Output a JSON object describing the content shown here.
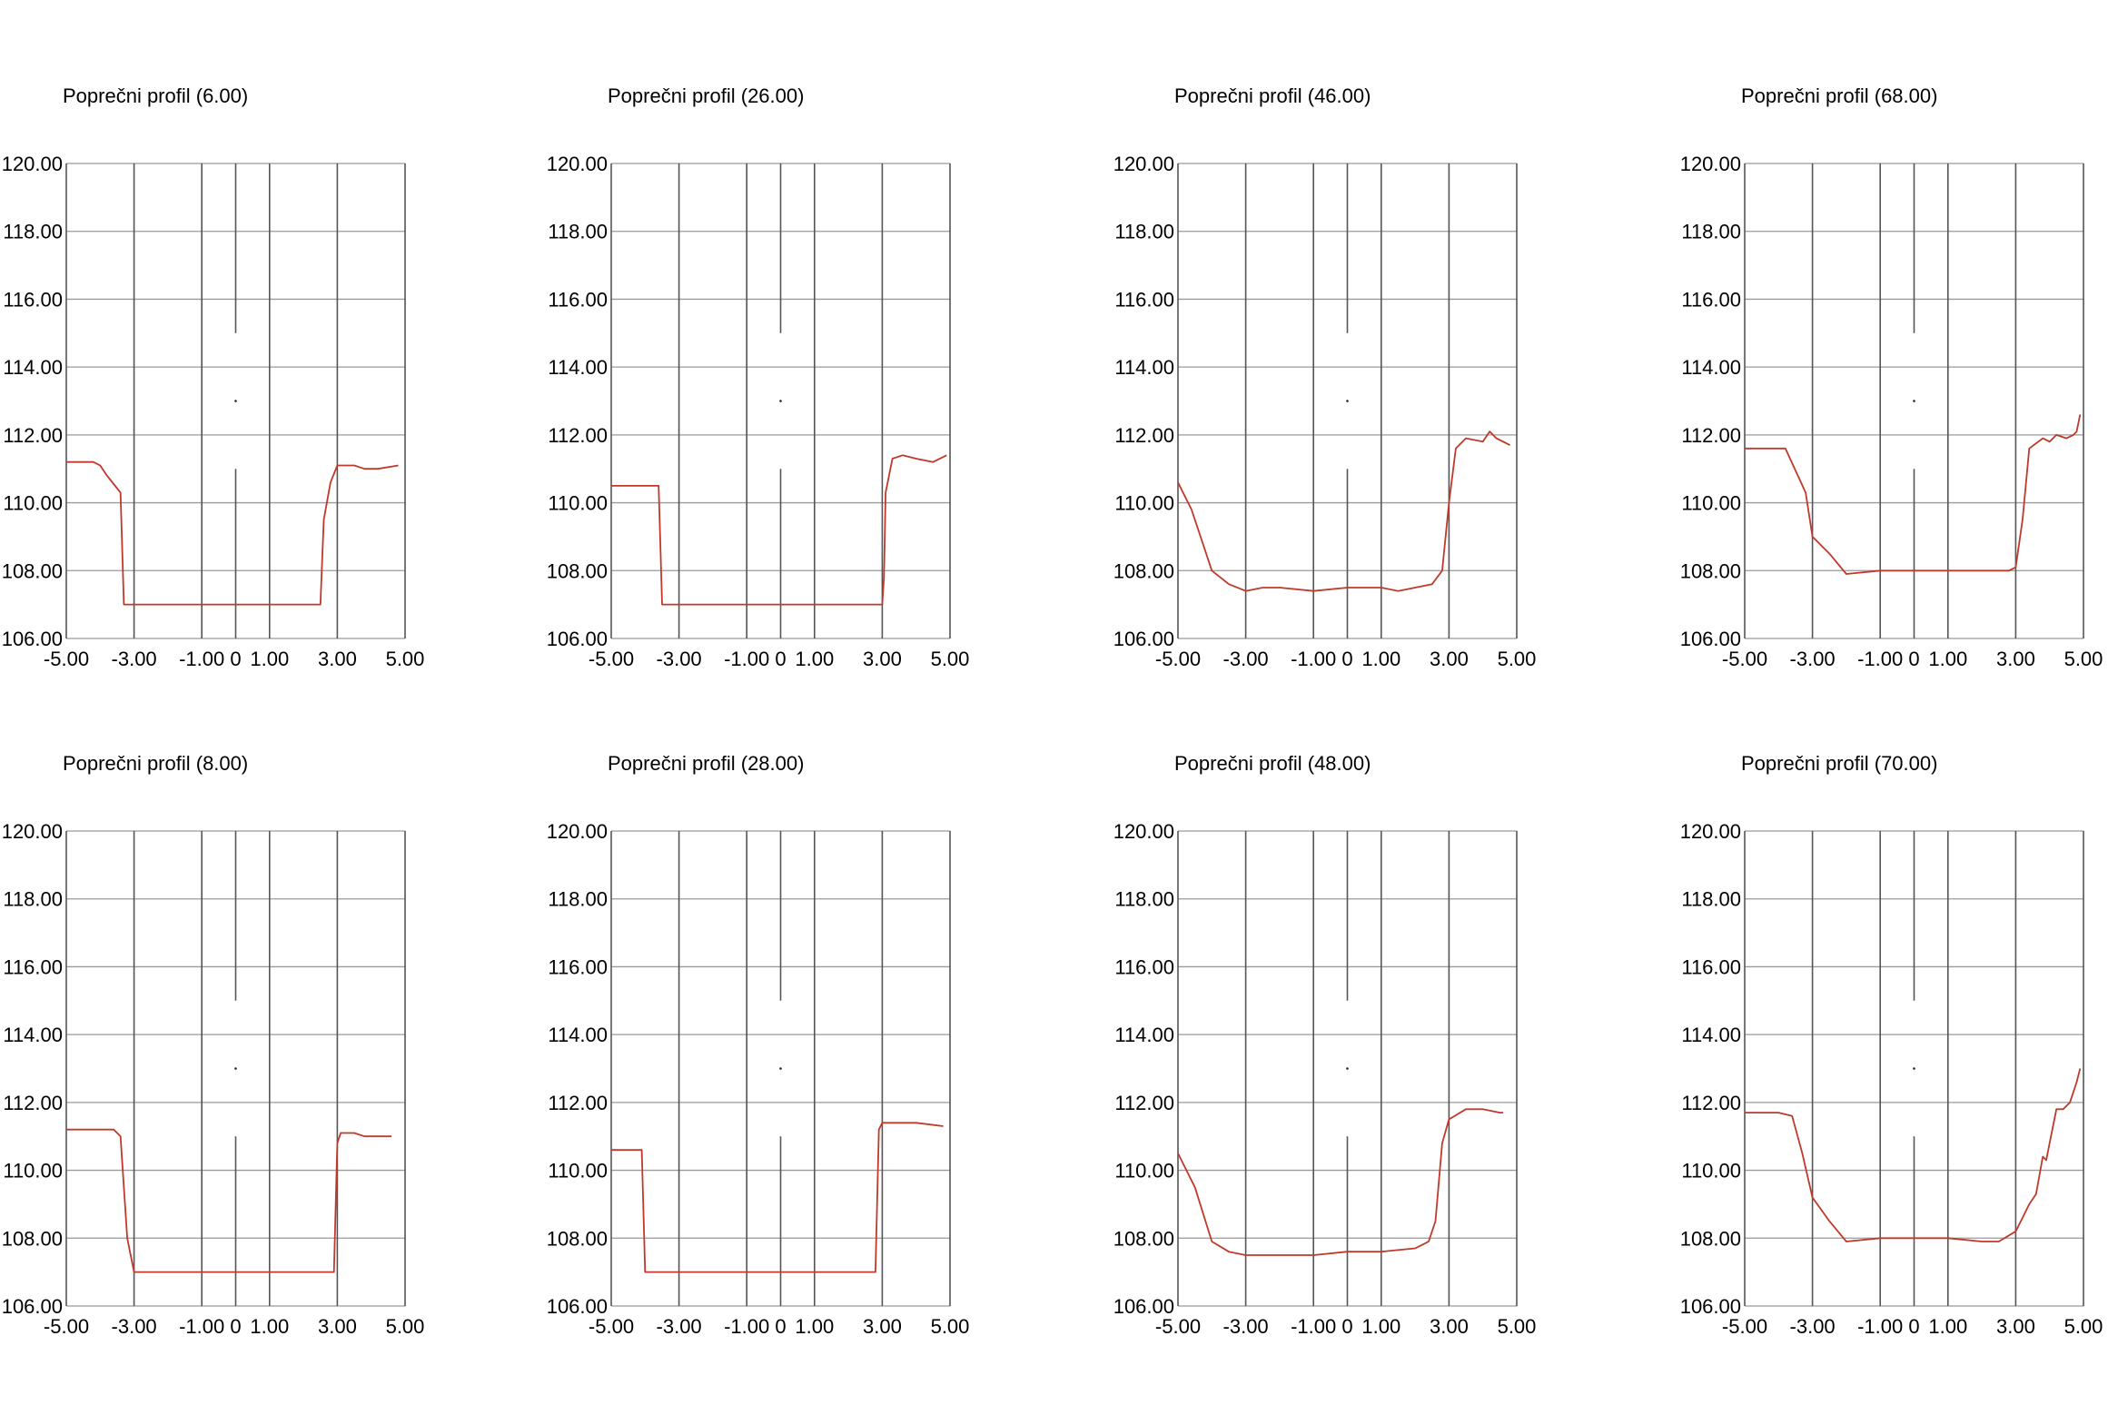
{
  "colors": {
    "profile_line": "#c0392b",
    "grid": "#9a9a9a",
    "axis_lines": "#555555"
  },
  "chart_data": [
    {
      "type": "line",
      "title": "Poprečni profil (6.00)",
      "ylim": [
        106,
        120
      ],
      "xlim": [
        -5,
        5
      ],
      "y_ticks": [
        "106.00",
        "108.00",
        "110.00",
        "112.00",
        "114.00",
        "116.00",
        "118.00",
        "120.00"
      ],
      "x_ticks": [
        {
          "value": -5,
          "label": "-5.00"
        },
        {
          "value": -3,
          "label": "-3.00"
        },
        {
          "value": -1,
          "label": "-1.00"
        },
        {
          "value": 0,
          "label": "0"
        },
        {
          "value": 1,
          "label": "1.00"
        },
        {
          "value": 3,
          "label": "3.00"
        },
        {
          "value": 5,
          "label": "5.00"
        }
      ],
      "series": [
        {
          "x": [
            -5,
            -4.2,
            -4,
            -3.8,
            -3.4,
            -3.3,
            -2.5,
            0,
            2,
            2.5,
            2.6,
            2.8,
            3.0,
            3.5,
            3.8,
            4.2,
            4.8
          ],
          "y": [
            111.2,
            111.2,
            111.1,
            110.8,
            110.3,
            107.0,
            107.0,
            107.0,
            107.0,
            107.0,
            109.5,
            110.6,
            111.1,
            111.1,
            111.0,
            111.0,
            111.1
          ]
        }
      ]
    },
    {
      "type": "line",
      "title": "Poprečni profil (26.00)",
      "ylim": [
        106,
        120
      ],
      "xlim": [
        -5,
        5
      ],
      "y_ticks": [
        "106.00",
        "108.00",
        "110.00",
        "112.00",
        "114.00",
        "116.00",
        "118.00",
        "120.00"
      ],
      "x_ticks": [
        {
          "value": -5,
          "label": "-5.00"
        },
        {
          "value": -3,
          "label": "-3.00"
        },
        {
          "value": -1,
          "label": "-1.00"
        },
        {
          "value": 0,
          "label": "0"
        },
        {
          "value": 1,
          "label": "1.00"
        },
        {
          "value": 3,
          "label": "3.00"
        },
        {
          "value": 5,
          "label": "5.00"
        }
      ],
      "series": [
        {
          "x": [
            -5,
            -3.9,
            -3.6,
            -3.5,
            0,
            2,
            3.0,
            3.05,
            3.1,
            3.3,
            3.6,
            4.0,
            4.5,
            4.9
          ],
          "y": [
            110.5,
            110.5,
            110.5,
            107.0,
            107.0,
            107.0,
            107.0,
            107.8,
            110.3,
            111.3,
            111.4,
            111.3,
            111.2,
            111.4
          ]
        }
      ]
    },
    {
      "type": "line",
      "title": "Poprečni profil (46.00)",
      "ylim": [
        106,
        120
      ],
      "xlim": [
        -5,
        5
      ],
      "y_ticks": [
        "106.00",
        "108.00",
        "110.00",
        "112.00",
        "114.00",
        "116.00",
        "118.00",
        "120.00"
      ],
      "x_ticks": [
        {
          "value": -5,
          "label": "-5.00"
        },
        {
          "value": -3,
          "label": "-3.00"
        },
        {
          "value": -1,
          "label": "-1.00"
        },
        {
          "value": 0,
          "label": "0"
        },
        {
          "value": 1,
          "label": "1.00"
        },
        {
          "value": 3,
          "label": "3.00"
        },
        {
          "value": 5,
          "label": "5.00"
        }
      ],
      "series": [
        {
          "x": [
            -5,
            -4.6,
            -4,
            -3.5,
            -3,
            -2.5,
            -2,
            -1,
            0,
            1,
            1.5,
            2,
            2.5,
            2.8,
            3.0,
            3.2,
            3.5,
            4.0,
            4.2,
            4.4,
            4.8
          ],
          "y": [
            110.6,
            109.8,
            108.0,
            107.6,
            107.4,
            107.5,
            107.5,
            107.4,
            107.5,
            107.5,
            107.4,
            107.5,
            107.6,
            108.0,
            110.0,
            111.6,
            111.9,
            111.8,
            112.1,
            111.9,
            111.7
          ]
        }
      ]
    },
    {
      "type": "line",
      "title": "Poprečni profil (68.00)",
      "ylim": [
        106,
        120
      ],
      "xlim": [
        -5,
        5
      ],
      "y_ticks": [
        "106.00",
        "108.00",
        "110.00",
        "112.00",
        "114.00",
        "116.00",
        "118.00",
        "120.00"
      ],
      "x_ticks": [
        {
          "value": -5,
          "label": "-5.00"
        },
        {
          "value": -3,
          "label": "-3.00"
        },
        {
          "value": -1,
          "label": "-1.00"
        },
        {
          "value": 0,
          "label": "0"
        },
        {
          "value": 1,
          "label": "1.00"
        },
        {
          "value": 3,
          "label": "3.00"
        },
        {
          "value": 5,
          "label": "5.00"
        }
      ],
      "series": [
        {
          "x": [
            -5,
            -4,
            -3.8,
            -3.2,
            -3,
            -2.5,
            -2,
            -1,
            0,
            1,
            2,
            2.8,
            3.0,
            3.2,
            3.4,
            3.8,
            4.0,
            4.2,
            4.5,
            4.7,
            4.8,
            4.9
          ],
          "y": [
            111.6,
            111.6,
            111.6,
            110.3,
            109.0,
            108.5,
            107.9,
            108.0,
            108.0,
            108.0,
            108.0,
            108.0,
            108.1,
            109.5,
            111.6,
            111.9,
            111.8,
            112.0,
            111.9,
            112.0,
            112.1,
            112.6
          ]
        }
      ]
    },
    {
      "type": "line",
      "title": "Poprečni profil (8.00)",
      "ylim": [
        106,
        120
      ],
      "xlim": [
        -5,
        5
      ],
      "y_ticks": [
        "106.00",
        "108.00",
        "110.00",
        "112.00",
        "114.00",
        "116.00",
        "118.00",
        "120.00"
      ],
      "x_ticks": [
        {
          "value": -5,
          "label": "-5.00"
        },
        {
          "value": -3,
          "label": "-3.00"
        },
        {
          "value": -1,
          "label": "-1.00"
        },
        {
          "value": 0,
          "label": "0"
        },
        {
          "value": 1,
          "label": "1.00"
        },
        {
          "value": 3,
          "label": "3.00"
        },
        {
          "value": 5,
          "label": "5.00"
        }
      ],
      "series": [
        {
          "x": [
            -5,
            -4,
            -3.6,
            -3.4,
            -3.2,
            -3,
            -2.5,
            0,
            2,
            2.9,
            3.0,
            3.1,
            3.5,
            3.8,
            4.0,
            4.5,
            4.6
          ],
          "y": [
            111.2,
            111.2,
            111.2,
            111.0,
            108.0,
            107.0,
            107.0,
            107.0,
            107.0,
            107.0,
            110.8,
            111.1,
            111.1,
            111.0,
            111.0,
            111.0,
            111.0
          ]
        }
      ]
    },
    {
      "type": "line",
      "title": "Poprečni profil (28.00)",
      "ylim": [
        106,
        120
      ],
      "xlim": [
        -5,
        5
      ],
      "y_ticks": [
        "106.00",
        "108.00",
        "110.00",
        "112.00",
        "114.00",
        "116.00",
        "118.00",
        "120.00"
      ],
      "x_ticks": [
        {
          "value": -5,
          "label": "-5.00"
        },
        {
          "value": -3,
          "label": "-3.00"
        },
        {
          "value": -1,
          "label": "-1.00"
        },
        {
          "value": 0,
          "label": "0"
        },
        {
          "value": 1,
          "label": "1.00"
        },
        {
          "value": 3,
          "label": "3.00"
        },
        {
          "value": 5,
          "label": "5.00"
        }
      ],
      "series": [
        {
          "x": [
            -5,
            -4.1,
            -4.0,
            -3.5,
            0,
            2,
            2.8,
            2.9,
            3.0,
            3.3,
            4.0,
            4.8
          ],
          "y": [
            110.6,
            110.6,
            107.0,
            107.0,
            107.0,
            107.0,
            107.0,
            111.2,
            111.4,
            111.4,
            111.4,
            111.3
          ]
        }
      ]
    },
    {
      "type": "line",
      "title": "Poprečni profil (48.00)",
      "ylim": [
        106,
        120
      ],
      "xlim": [
        -5,
        5
      ],
      "y_ticks": [
        "106.00",
        "108.00",
        "110.00",
        "112.00",
        "114.00",
        "116.00",
        "118.00",
        "120.00"
      ],
      "x_ticks": [
        {
          "value": -5,
          "label": "-5.00"
        },
        {
          "value": -3,
          "label": "-3.00"
        },
        {
          "value": -1,
          "label": "-1.00"
        },
        {
          "value": 0,
          "label": "0"
        },
        {
          "value": 1,
          "label": "1.00"
        },
        {
          "value": 3,
          "label": "3.00"
        },
        {
          "value": 5,
          "label": "5.00"
        }
      ],
      "series": [
        {
          "x": [
            -5,
            -4.5,
            -4,
            -3.5,
            -3,
            -2,
            -1,
            0,
            1,
            2,
            2.2,
            2.4,
            2.6,
            2.8,
            3.0,
            3.5,
            4.0,
            4.5,
            4.6
          ],
          "y": [
            110.5,
            109.5,
            107.9,
            107.6,
            107.5,
            107.5,
            107.5,
            107.6,
            107.6,
            107.7,
            107.8,
            107.9,
            108.5,
            110.8,
            111.5,
            111.8,
            111.8,
            111.7,
            111.7
          ]
        }
      ]
    },
    {
      "type": "line",
      "title": "Poprečni profil (70.00)",
      "ylim": [
        106,
        120
      ],
      "xlim": [
        -5,
        5
      ],
      "y_ticks": [
        "106.00",
        "108.00",
        "110.00",
        "112.00",
        "114.00",
        "116.00",
        "118.00",
        "120.00"
      ],
      "x_ticks": [
        {
          "value": -5,
          "label": "-5.00"
        },
        {
          "value": -3,
          "label": "-3.00"
        },
        {
          "value": -1,
          "label": "-1.00"
        },
        {
          "value": 0,
          "label": "0"
        },
        {
          "value": 1,
          "label": "1.00"
        },
        {
          "value": 3,
          "label": "3.00"
        },
        {
          "value": 5,
          "label": "5.00"
        }
      ],
      "series": [
        {
          "x": [
            -5,
            -4,
            -3.6,
            -3.3,
            -3,
            -2.5,
            -2,
            -1,
            0,
            1,
            2,
            2.5,
            3.0,
            3.2,
            3.4,
            3.6,
            3.8,
            3.9,
            4.0,
            4.2,
            4.4,
            4.6,
            4.8,
            4.9
          ],
          "y": [
            111.7,
            111.7,
            111.6,
            110.5,
            109.2,
            108.5,
            107.9,
            108.0,
            108.0,
            108.0,
            107.9,
            107.9,
            108.2,
            108.6,
            109.0,
            109.3,
            110.4,
            110.3,
            110.8,
            111.8,
            111.8,
            112.0,
            112.6,
            113.0
          ]
        }
      ]
    }
  ]
}
